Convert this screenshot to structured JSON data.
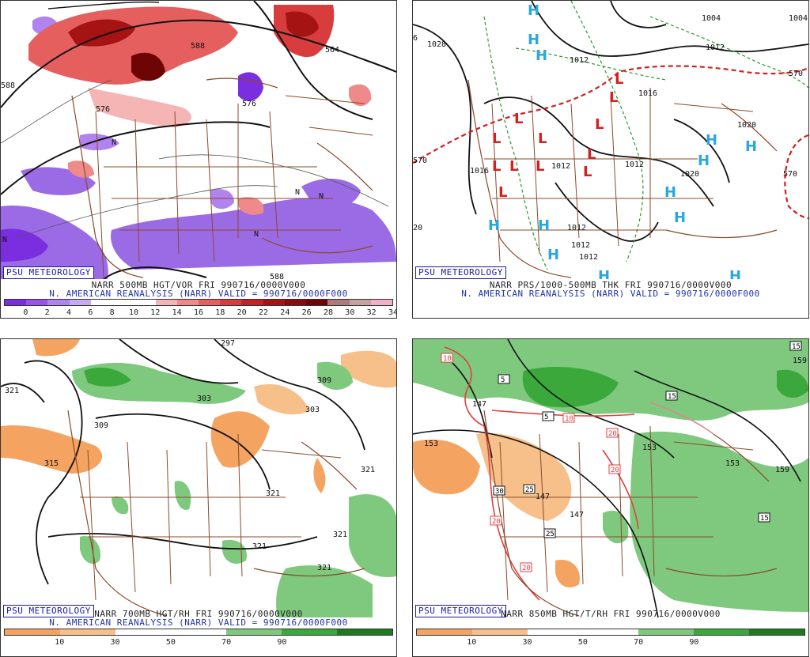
{
  "panels": [
    {
      "id": "vor",
      "badge": "PSU METEOROLOGY",
      "caption1": "NARR 500MB HGT/VOR FRI 990716/0000V000",
      "caption2": "N. AMERICAN REANALYSIS (NARR) VALID = 990716/0000F000",
      "scale_ticks": [
        "0",
        "2",
        "4",
        "6",
        "8",
        "10",
        "12",
        "14",
        "16",
        "18",
        "20",
        "22",
        "24",
        "26",
        "28",
        "30",
        "32",
        "34"
      ],
      "scale_colors": [
        "#7b2de0",
        "#9a52e8",
        "#b083ee",
        "#c8a9f4",
        "#ffffff",
        "#ffffff",
        "#ffffff",
        "#f5b5b5",
        "#ef8a8a",
        "#e65f5f",
        "#d93c3c",
        "#c42222",
        "#a51313",
        "#8a0a0a",
        "#6e0505",
        "#b07a7a",
        "#c9a0a0",
        "#f0b0c8"
      ],
      "contour_labels": [
        "588",
        "576",
        "564",
        "588",
        "576",
        "588"
      ]
    },
    {
      "id": "thk",
      "badge": "PSU METEOROLOGY",
      "caption1": "NARR PRS/1000-500MB THK FRI 990716/0000V000",
      "caption2": "N. AMERICAN REANALYSIS (NARR) VALID = 990716/0000F000",
      "contour_labels": [
        "1028",
        "1004",
        "1012",
        "1012",
        "1012",
        "1012",
        "1012",
        "1020",
        "1020",
        "1012",
        "1012",
        "570",
        "570",
        "570",
        "6",
        "20",
        "1016",
        "1016",
        "1004"
      ]
    },
    {
      "id": "rh700",
      "badge": "PSU METEOROLOGY",
      "caption1": "NARR 700MB HGT/RH FRI 990716/0000V000",
      "caption2": "N. AMERICAN REANALYSIS (NARR) VALID = 990716/0000F000",
      "scale_ticks": [
        "10",
        "30",
        "50",
        "70",
        "90"
      ],
      "contour_labels": [
        "297",
        "321",
        "309",
        "303",
        "303",
        "309",
        "315",
        "321",
        "321",
        "321",
        "321",
        "321"
      ]
    },
    {
      "id": "t850",
      "badge": "PSU METEOROLOGY",
      "caption1": "NARR 850MB HGT/T/RH FRI 990716/0000V000",
      "scale_ticks": [
        "10",
        "30",
        "50",
        "70",
        "90"
      ],
      "contour_labels": [
        "153",
        "147",
        "153",
        "159",
        "147",
        "147",
        "153",
        "159",
        "5",
        "15",
        "10",
        "20",
        "30",
        "25",
        "20",
        "25",
        "20",
        "20",
        "15",
        "15",
        "10",
        "5"
      ]
    }
  ],
  "colors": {
    "rh_scale": [
      "#f4a460",
      "#f7c08a",
      "#ffffff",
      "#ffffff",
      "#7ec97e",
      "#3ba83b",
      "#1e7a1e"
    ],
    "land_border": "#8b4a2b",
    "high_marker": "#29a8e0",
    "low_marker": "#d42020"
  },
  "markers": {
    "high": "H",
    "low": "L",
    "nwave": "N"
  }
}
